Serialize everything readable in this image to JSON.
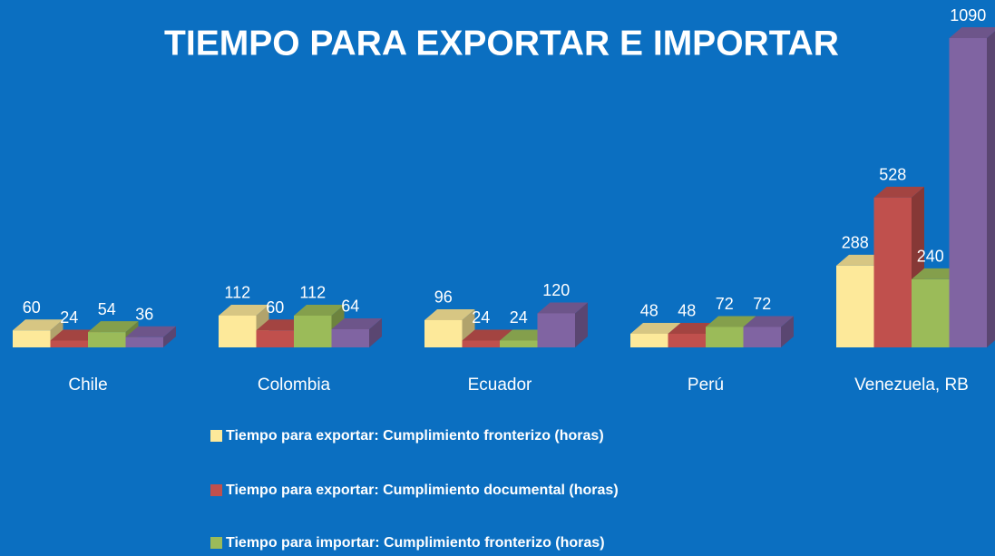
{
  "chart_data": {
    "type": "bar3d",
    "title": "TIEMPO PARA EXPORTAR E IMPORTAR",
    "categories": [
      "Chile",
      "Colombia",
      "Ecuador",
      "Perú",
      "Venezuela, RB"
    ],
    "series": [
      {
        "name": "Tiempo para exportar: Cumplimiento fronterizo (horas)",
        "color": "#fde99a",
        "values": [
          60,
          112,
          96,
          48,
          288
        ]
      },
      {
        "name": "Tiempo para exportar: Cumplimiento documental (horas)",
        "color": "#c0504d",
        "values": [
          24,
          60,
          24,
          48,
          528
        ]
      },
      {
        "name": "Tiempo para importar: Cumplimiento fronterizo (horas)",
        "color": "#9bbb59",
        "values": [
          54,
          112,
          24,
          72,
          240
        ]
      },
      {
        "color": "#8064a2",
        "values": [
          36,
          64,
          120,
          72,
          1090
        ]
      }
    ]
  }
}
